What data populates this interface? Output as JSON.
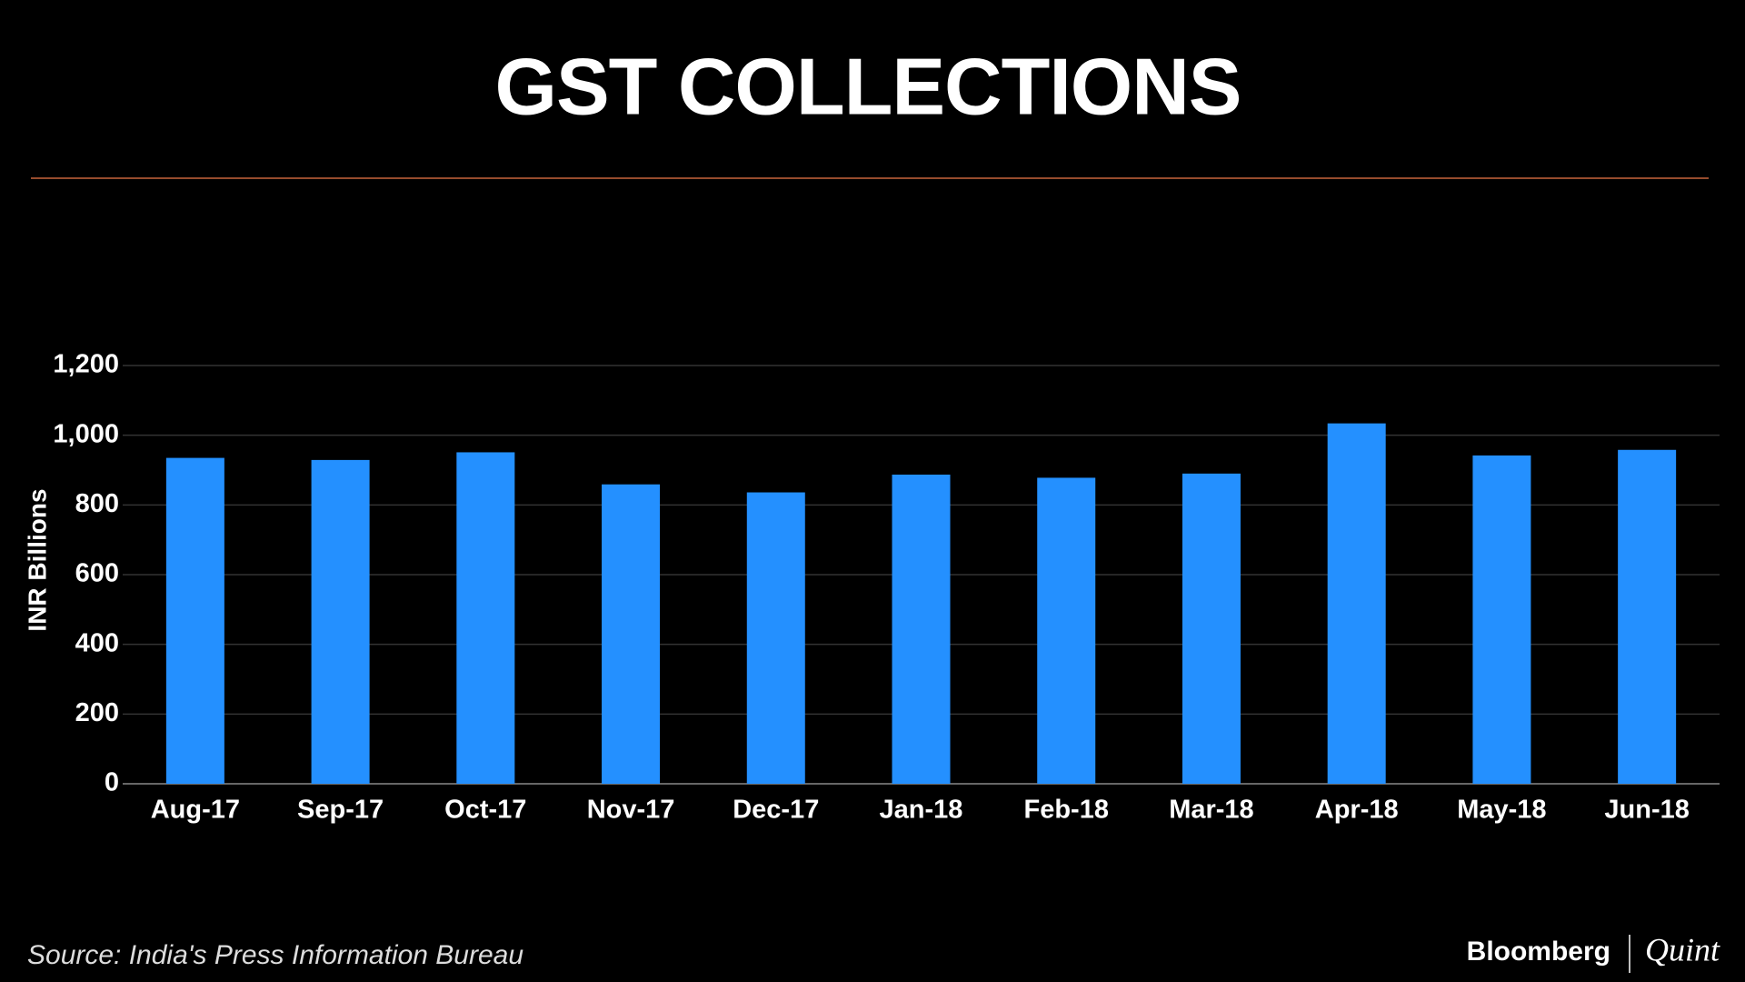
{
  "chart_data": {
    "type": "bar",
    "title": "GST COLLECTIONS",
    "y_label": "INR Billions",
    "categories": [
      "Aug-17",
      "Sep-17",
      "Oct-17",
      "Nov-17",
      "Dec-17",
      "Jan-18",
      "Feb-18",
      "Mar-18",
      "Apr-18",
      "May-18",
      "Jun-18"
    ],
    "values": [
      935,
      929,
      951,
      859,
      836,
      887,
      878,
      890,
      1034,
      942,
      958
    ],
    "color": "#2490ff",
    "ylim": [
      0,
      1200
    ],
    "yticks": [
      0,
      200,
      400,
      600,
      800,
      {
        "value": 1000,
        "label": "1,000"
      },
      {
        "value": 1200,
        "label": "1,200"
      }
    ],
    "grid": true,
    "source": "Source: India's Press Information Bureau",
    "brand": [
      "Bloomberg",
      "Quint"
    ]
  }
}
